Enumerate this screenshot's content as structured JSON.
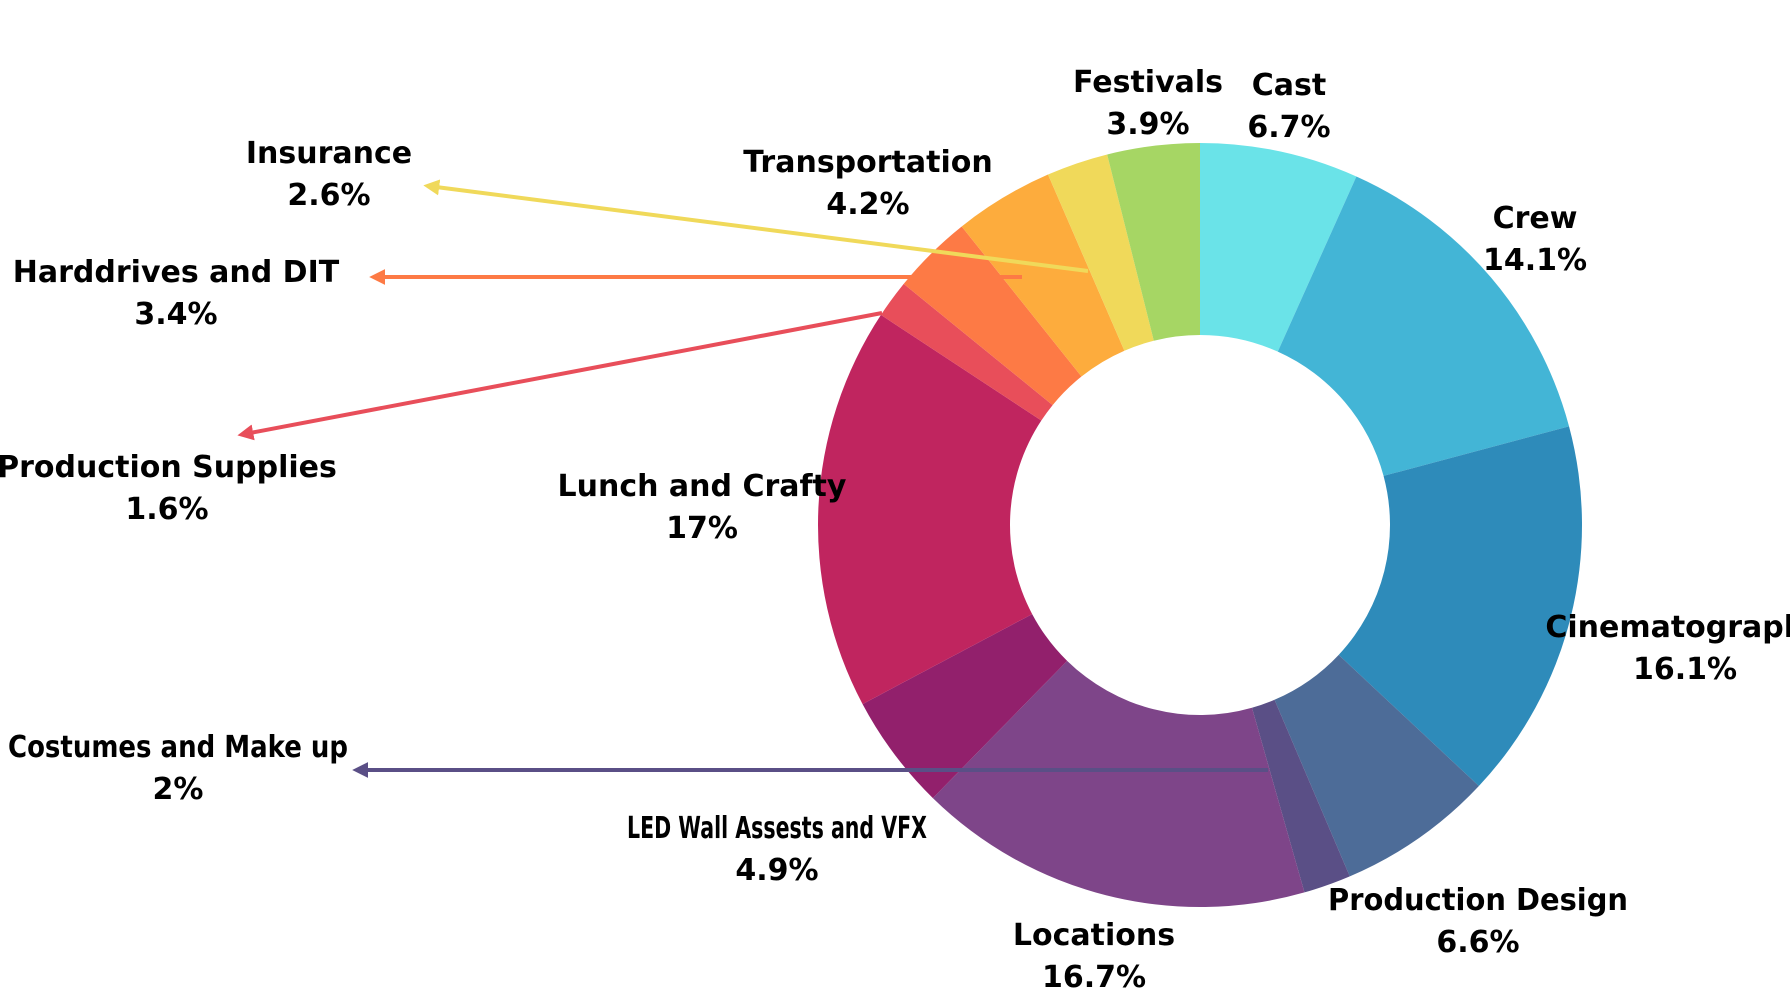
{
  "chart_data": {
    "type": "pie",
    "donut": true,
    "title": "",
    "legend": "none",
    "slices": [
      {
        "label": "Cast",
        "value": 6.7,
        "display": "6.7%",
        "color": "#6ae3e8"
      },
      {
        "label": "Crew",
        "value": 14.1,
        "display": "14.1%",
        "color": "#43b5d6"
      },
      {
        "label": "Cinematography",
        "value": 16.1,
        "display": "16.1%",
        "color": "#2e8bba"
      },
      {
        "label": "Production Design",
        "value": 6.6,
        "display": "6.6%",
        "color": "#4d6c98"
      },
      {
        "label": "Costumes and Make up",
        "value": 2.0,
        "display": "2%",
        "color": "#5a4f86"
      },
      {
        "label": "Locations",
        "value": 16.7,
        "display": "16.7%",
        "color": "#7e4589"
      },
      {
        "label": "LED Wall Assests and VFX",
        "value": 4.9,
        "display": "4.9%",
        "color": "#92206c"
      },
      {
        "label": "Lunch and Crafty",
        "value": 17.0,
        "display": "17%",
        "color": "#c0255f"
      },
      {
        "label": "Production Supplies",
        "value": 1.6,
        "display": "1.6%",
        "color": "#e84e5a"
      },
      {
        "label": "Harddrives and DIT",
        "value": 3.4,
        "display": "3.4%",
        "color": "#fd7a45"
      },
      {
        "label": "Transportation",
        "value": 4.2,
        "display": "4.2%",
        "color": "#fdac3d"
      },
      {
        "label": "Insurance",
        "value": 2.6,
        "display": "2.6%",
        "color": "#f0d95a"
      },
      {
        "label": "Festivals",
        "value": 3.9,
        "display": "3.9%",
        "color": "#a6d664"
      }
    ]
  }
}
